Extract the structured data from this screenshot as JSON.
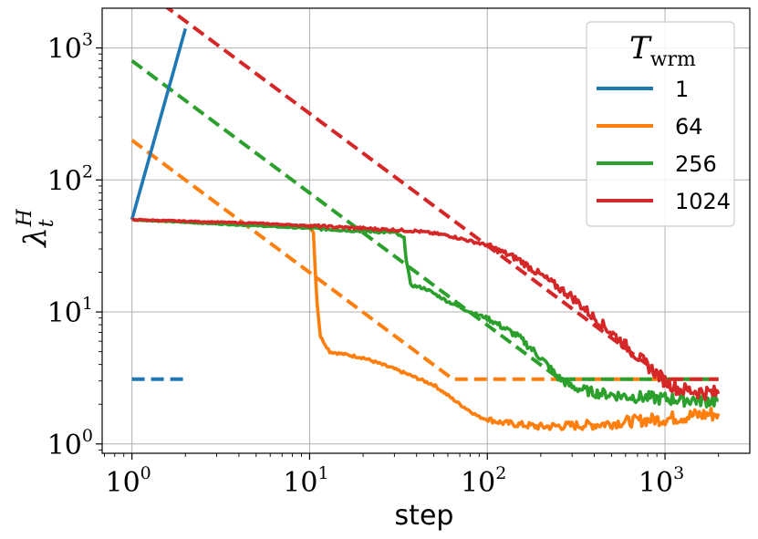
{
  "chart_data": {
    "type": "line",
    "title": "",
    "xlabel": "step",
    "ylabel": "λ_t^H",
    "ylabel_main": "λ",
    "ylabel_sub": "t",
    "ylabel_sup": "H",
    "xscale": "log",
    "yscale": "log",
    "xlim": [
      0.68,
      3000
    ],
    "ylim": [
      0.85,
      2000
    ],
    "grid": true,
    "xticks": [
      1,
      10,
      100,
      1000
    ],
    "xtick_labels": [
      {
        "base": "10",
        "exp": "0"
      },
      {
        "base": "10",
        "exp": "1"
      },
      {
        "base": "10",
        "exp": "2"
      },
      {
        "base": "10",
        "exp": "3"
      }
    ],
    "yticks": [
      1,
      10,
      100,
      1000
    ],
    "ytick_labels": [
      {
        "base": "10",
        "exp": "0"
      },
      {
        "base": "10",
        "exp": "1"
      },
      {
        "base": "10",
        "exp": "2"
      },
      {
        "base": "10",
        "exp": "3"
      }
    ],
    "legend": {
      "title_main": "T",
      "title_sub": "wrm",
      "placement": "top-right"
    },
    "series": [
      {
        "name": "1",
        "color": "#1f77b4",
        "solid": [
          [
            1,
            50
          ],
          [
            2,
            1400
          ]
        ],
        "dashed": [
          [
            1,
            3.1
          ],
          [
            2,
            3.1
          ]
        ]
      },
      {
        "name": "64",
        "color": "#ff7f0e",
        "solid": [
          [
            1,
            50
          ],
          [
            5,
            46
          ],
          [
            8,
            44
          ],
          [
            10,
            45
          ],
          [
            10.5,
            40
          ],
          [
            11,
            12
          ],
          [
            11.5,
            6.5
          ],
          [
            13,
            5
          ],
          [
            20,
            4.5
          ],
          [
            30,
            3.7
          ],
          [
            50,
            2.8
          ],
          [
            70,
            2.0
          ],
          [
            90,
            1.6
          ],
          [
            120,
            1.45
          ],
          [
            200,
            1.35
          ],
          [
            400,
            1.4
          ],
          [
            700,
            1.5
          ],
          [
            1000,
            1.55
          ],
          [
            1500,
            1.65
          ],
          [
            2000,
            1.7
          ]
        ],
        "dashed": [
          [
            1,
            200
          ],
          [
            64,
            3.1
          ],
          [
            2000,
            3.1
          ]
        ]
      },
      {
        "name": "256",
        "color": "#2ca02c",
        "solid": [
          [
            1,
            50
          ],
          [
            5,
            45
          ],
          [
            10,
            43
          ],
          [
            20,
            41
          ],
          [
            30,
            40
          ],
          [
            34,
            36
          ],
          [
            35,
            25
          ],
          [
            37,
            16
          ],
          [
            45,
            15
          ],
          [
            60,
            12
          ],
          [
            80,
            10
          ],
          [
            100,
            9
          ],
          [
            150,
            6.5
          ],
          [
            200,
            4.5
          ],
          [
            250,
            3.2
          ],
          [
            300,
            2.7
          ],
          [
            400,
            2.45
          ],
          [
            600,
            2.3
          ],
          [
            1000,
            2.2
          ],
          [
            2000,
            2.15
          ]
        ],
        "dashed": [
          [
            1,
            800
          ],
          [
            256,
            3.1
          ],
          [
            2000,
            3.1
          ]
        ]
      },
      {
        "name": "1024",
        "color": "#d62728",
        "solid": [
          [
            1,
            50
          ],
          [
            5,
            47
          ],
          [
            10,
            45
          ],
          [
            20,
            43
          ],
          [
            40,
            41
          ],
          [
            60,
            38
          ],
          [
            100,
            32
          ],
          [
            150,
            25
          ],
          [
            200,
            19
          ],
          [
            300,
            13
          ],
          [
            400,
            9
          ],
          [
            500,
            7
          ],
          [
            700,
            4.6
          ],
          [
            1000,
            3.0
          ],
          [
            1200,
            2.6
          ],
          [
            2000,
            2.4
          ]
        ],
        "dashed": [
          [
            1,
            3200
          ],
          [
            1024,
            3.1
          ],
          [
            2000,
            3.1
          ]
        ]
      }
    ]
  }
}
